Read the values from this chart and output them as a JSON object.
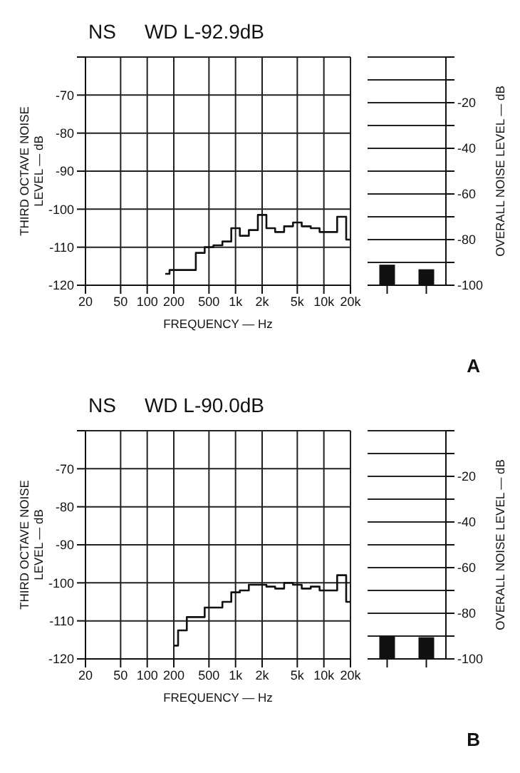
{
  "chart_data": [
    {
      "type": "step",
      "title": "NS",
      "subtitle": "WD L-92.9dB",
      "xlabel": "FREQUENCY — Hz",
      "ylabel": "THIRD OCTAVE NOISE LEVEL — dB",
      "annotations": [
        "A"
      ],
      "x": [
        160,
        200,
        250,
        315,
        400,
        500,
        630,
        800,
        1000,
        1250,
        1600,
        2000,
        2500,
        3150,
        4000,
        5000,
        6300,
        8000,
        10000,
        12500,
        16000,
        20000
      ],
      "values": [
        -117,
        -116,
        -116,
        -116,
        -111.5,
        -110,
        -109.5,
        -108.5,
        -105,
        -107,
        -105.5,
        -101.5,
        -105,
        -106,
        -104.5,
        -103.5,
        -104.5,
        -105,
        -106,
        -106,
        -102,
        -108
      ],
      "color": "#111111",
      "xlim": [
        20,
        20000
      ],
      "xticks": [
        20,
        50,
        100,
        200,
        500,
        {
          "value": 1000,
          "label": "1k"
        },
        {
          "value": 2000,
          "label": "2k"
        },
        {
          "value": 5000,
          "label": "5k"
        },
        {
          "value": 10000,
          "label": "10k"
        },
        {
          "value": 20000,
          "label": "20k"
        }
      ],
      "ylim": [
        -120,
        -60
      ],
      "yticks": [
        {
          "value": -60,
          "label": null
        },
        -70,
        -80,
        -90,
        -100,
        -110,
        -120
      ],
      "log": "x",
      "grid": true,
      "marker": "none",
      "line_style": "solid"
    },
    {
      "type": "bar",
      "ylabel": "OVERALL NOISE LEVEL — dB",
      "categories": [
        null,
        null
      ],
      "base": [
        -100,
        -100
      ],
      "values": [
        9,
        7
      ],
      "colors": [
        "#111111",
        "#111111"
      ],
      "ylim": [
        -100,
        0
      ],
      "yticks": [
        {
          "value": 0,
          "label": null
        },
        {
          "value": -10,
          "label": null
        },
        -20,
        {
          "value": -30,
          "label": null
        },
        -40,
        {
          "value": -50,
          "label": null
        },
        -60,
        {
          "value": -70,
          "label": null
        },
        -80,
        {
          "value": -90,
          "label": null
        },
        -100
      ],
      "grid": "y"
    },
    {
      "type": "step",
      "title": "NS",
      "subtitle": "WD L-90.0dB",
      "xlabel": "FREQUENCY — Hz",
      "ylabel": "THIRD OCTAVE NOISE LEVEL — dB",
      "annotations": [
        "B"
      ],
      "x": [
        200,
        250,
        315,
        400,
        500,
        630,
        800,
        1000,
        1250,
        1600,
        2000,
        2500,
        3150,
        4000,
        5000,
        6300,
        8000,
        10000,
        12500,
        16000,
        20000
      ],
      "values": [
        -116.5,
        -112.5,
        -109,
        -109,
        -106.5,
        -106.5,
        -105,
        -102.5,
        -102,
        -100.5,
        -100.5,
        -101,
        -101.5,
        -100,
        -100.5,
        -101.5,
        -101,
        -102,
        -102,
        -98,
        -105
      ],
      "color": "#111111",
      "xlim": [
        20,
        20000
      ],
      "xticks": [
        20,
        50,
        100,
        200,
        500,
        {
          "value": 1000,
          "label": "1k"
        },
        {
          "value": 2000,
          "label": "2k"
        },
        {
          "value": 5000,
          "label": "5k"
        },
        {
          "value": 10000,
          "label": "10k"
        },
        {
          "value": 20000,
          "label": "20k"
        }
      ],
      "ylim": [
        -120,
        -60
      ],
      "yticks": [
        {
          "value": -60,
          "label": null
        },
        -70,
        -80,
        -90,
        -100,
        -110,
        -120
      ],
      "log": "x",
      "grid": true,
      "marker": "none",
      "line_style": "solid"
    },
    {
      "type": "bar",
      "ylabel": "OVERALL NOISE LEVEL — dB",
      "categories": [
        null,
        null
      ],
      "base": [
        -100,
        -100
      ],
      "values": [
        10,
        9.5
      ],
      "colors": [
        "#111111",
        "#111111"
      ],
      "ylim": [
        -100,
        0
      ],
      "yticks": [
        {
          "value": 0,
          "label": null
        },
        {
          "value": -10,
          "label": null
        },
        -20,
        {
          "value": -30,
          "label": null
        },
        -40,
        {
          "value": -50,
          "label": null
        },
        -60,
        {
          "value": -70,
          "label": null
        },
        -80,
        {
          "value": -90,
          "label": null
        },
        -100
      ],
      "grid": "y"
    }
  ]
}
